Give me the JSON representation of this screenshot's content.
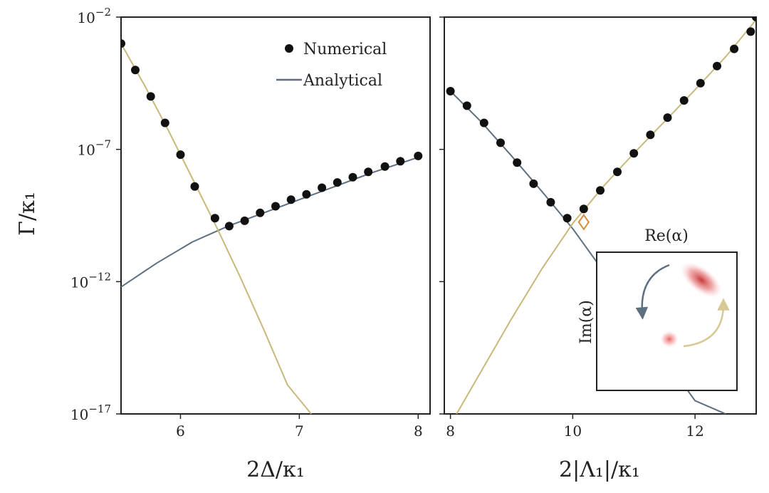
{
  "figure": {
    "y_label": "Γ/κ₁",
    "y_ticks": [
      {
        "base": "10",
        "exp": "−2",
        "value": -2
      },
      {
        "base": "10",
        "exp": "−7",
        "value": -7
      },
      {
        "base": "10",
        "exp": "−12",
        "value": -12
      },
      {
        "base": "10",
        "exp": "−17",
        "value": -17
      }
    ],
    "legend": {
      "numerical": "Numerical",
      "analytical": "Analytical"
    },
    "inset": {
      "x_label": "Re(α)",
      "y_label": "Im(α)"
    },
    "colors": {
      "tan_curve": "#c8b87a",
      "slate_curve": "#5d6f80",
      "marker": "#111111",
      "crossing_marker": "#d98a3a",
      "lobe": "#d94545"
    }
  },
  "chart_data": [
    {
      "type": "scatter",
      "panel": "left",
      "xlabel": "2Δ/κ₁",
      "ylabel": "Γ/κ₁",
      "yscale": "log",
      "xlim": [
        5.5,
        8.1
      ],
      "ylim_log10": [
        -17,
        -2
      ],
      "x_ticks": [
        6,
        7,
        8
      ],
      "series": [
        {
          "name": "Numerical",
          "kind": "markers",
          "x": [
            5.5,
            5.62,
            5.75,
            5.87,
            6.0,
            6.12,
            6.29,
            6.41,
            6.54,
            6.67,
            6.8,
            6.93,
            7.06,
            7.19,
            7.32,
            7.45,
            7.58,
            7.72,
            7.85,
            8.0
          ],
          "log10_y": [
            -3.0,
            -4.0,
            -5.0,
            -6.0,
            -7.2,
            -8.4,
            -9.6,
            -9.9,
            -9.7,
            -9.4,
            -9.15,
            -8.9,
            -8.7,
            -8.45,
            -8.25,
            -8.05,
            -7.85,
            -7.65,
            -7.45,
            -7.25
          ]
        },
        {
          "name": "Analytical",
          "kind": "line",
          "color": "slate",
          "x": [
            5.5,
            5.8,
            6.1,
            6.4,
            6.7,
            7.0,
            7.3,
            7.6,
            7.9,
            8.0
          ],
          "log10_y": [
            -12.2,
            -11.3,
            -10.5,
            -9.9,
            -9.4,
            -8.9,
            -8.4,
            -7.9,
            -7.45,
            -7.3
          ]
        },
        {
          "kind": "line",
          "color": "tan",
          "x": [
            5.5,
            5.7,
            5.9,
            6.1,
            6.3,
            6.5,
            6.7,
            6.9,
            7.1
          ],
          "log10_y": [
            -3.0,
            -4.6,
            -6.3,
            -8.1,
            -9.9,
            -11.8,
            -13.8,
            -15.9,
            -17.0
          ]
        }
      ]
    },
    {
      "type": "scatter",
      "panel": "right",
      "xlabel": "2|Λ₁|/κ₁",
      "yscale": "log",
      "xlim": [
        7.9,
        13.0
      ],
      "ylim_log10": [
        -17,
        -2
      ],
      "x_ticks": [
        8,
        10,
        12
      ],
      "series": [
        {
          "name": "Numerical",
          "kind": "markers",
          "x": [
            8.0,
            8.27,
            8.55,
            8.82,
            9.09,
            9.36,
            9.64,
            9.91,
            10.18,
            10.45,
            10.73,
            11.0,
            11.27,
            11.55,
            11.82,
            12.09,
            12.36,
            12.64,
            12.91,
            13.0
          ],
          "log10_y": [
            -4.8,
            -5.35,
            -6.0,
            -6.75,
            -7.5,
            -8.3,
            -9.0,
            -9.6,
            -9.25,
            -8.55,
            -7.85,
            -7.15,
            -6.45,
            -5.8,
            -5.15,
            -4.5,
            -3.85,
            -3.2,
            -2.55,
            -2.0
          ]
        },
        {
          "kind": "line",
          "color": "slate",
          "x": [
            8.0,
            8.5,
            9.0,
            9.5,
            10.0,
            10.5,
            11.0,
            11.5,
            12.0,
            12.5
          ],
          "log10_y": [
            -4.8,
            -5.95,
            -7.25,
            -8.6,
            -10.0,
            -11.6,
            -13.2,
            -14.9,
            -16.5,
            -17.0
          ]
        },
        {
          "kind": "line",
          "color": "tan",
          "x": [
            8.1,
            8.5,
            9.0,
            9.5,
            10.0,
            10.5,
            11.0,
            11.5,
            12.0,
            12.5,
            13.0
          ],
          "log10_y": [
            -17.0,
            -15.4,
            -13.4,
            -11.5,
            -9.8,
            -8.4,
            -7.15,
            -5.95,
            -4.75,
            -3.5,
            -2.1
          ]
        },
        {
          "kind": "crossing-marker",
          "x": [
            10.18
          ],
          "log10_y": [
            -9.75
          ]
        }
      ]
    }
  ]
}
